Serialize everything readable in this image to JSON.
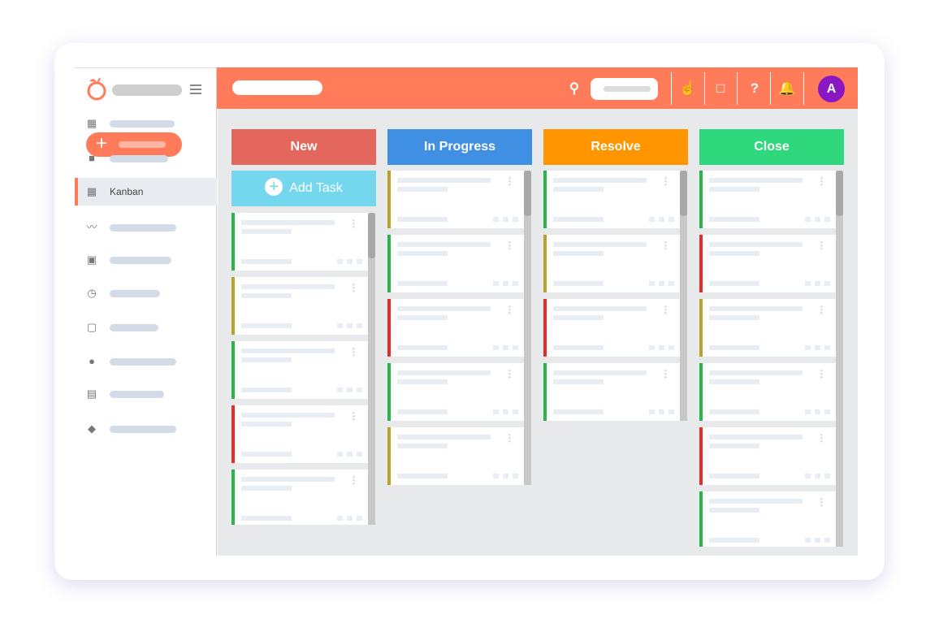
{
  "sidebar": {
    "active_label": "Kanban",
    "icons": [
      "dashboard-icon",
      "briefcase-icon",
      "kanban-icon",
      "trend-icon",
      "clipboard-icon",
      "clock-icon",
      "contact-icon",
      "person-icon",
      "form-icon",
      "layers-icon"
    ]
  },
  "header": {
    "avatar_letter": "A",
    "icons": [
      "search-icon",
      "hand-pointer-icon",
      "feedback-icon",
      "help-icon",
      "bell-icon"
    ]
  },
  "colors": {
    "accent": "#ff7b5a",
    "green": "#2bb24c",
    "olive": "#b8a22a",
    "red": "#e82a2a"
  },
  "board": {
    "add_task_label": "Add Task",
    "columns": [
      {
        "title": "New",
        "color": "#e4675e",
        "cards": [
          "green",
          "olive",
          "green",
          "red",
          "green"
        ]
      },
      {
        "title": "In Progress",
        "color": "#3f8fe3",
        "cards": [
          "olive",
          "green",
          "red",
          "green",
          "olive"
        ]
      },
      {
        "title": "Resolve",
        "color": "#ff9500",
        "cards": [
          "green",
          "olive",
          "red",
          "green"
        ]
      },
      {
        "title": "Close",
        "color": "#2fd87d",
        "cards": [
          "green",
          "red",
          "olive",
          "green",
          "red",
          "green"
        ]
      }
    ]
  }
}
